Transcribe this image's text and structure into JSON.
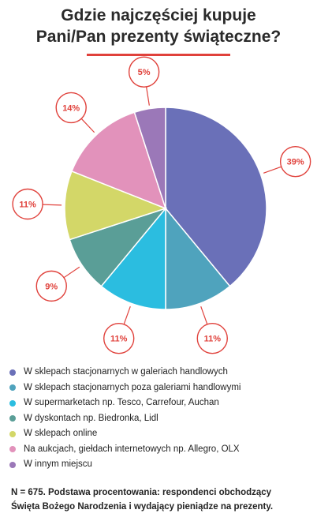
{
  "title_lines": [
    "Gdzie najczęściej kupuje",
    "Pani/Pan  prezenty świąteczne?"
  ],
  "chart_data": {
    "type": "pie",
    "title": "Gdzie najczęściej kupuje Pani/Pan  prezenty świąteczne?",
    "categories": [
      "W sklepach stacjonarnych w galeriach handlowych",
      "W sklepach stacjonarnych poza galeriami handlowymi",
      "W supermarketach np. Tesco, Carrefour, Auchan",
      "W dyskontach np. Biedronka, Lidl",
      "W sklepach online",
      "Na aukcjach, giełdach internetowych np. Allegro, OLX",
      "W innym miejscu"
    ],
    "values": [
      39,
      11,
      11,
      9,
      11,
      14,
      5
    ],
    "labels": [
      "39%",
      "11%",
      "11%",
      "9%",
      "11%",
      "14%",
      "5%"
    ],
    "colors": [
      "#6a70b8",
      "#4fa3bd",
      "#2bbde0",
      "#5a9e97",
      "#d3d768",
      "#e292bb",
      "#9b78b8"
    ],
    "label_color": "#e0413b",
    "legend_position": "bottom"
  },
  "footnote_lines": [
    "N = 675. Podstawa procentowania: respondenci obchodzący",
    "Święta Bożego Narodzenia i wydający pieniądze na prezenty."
  ]
}
